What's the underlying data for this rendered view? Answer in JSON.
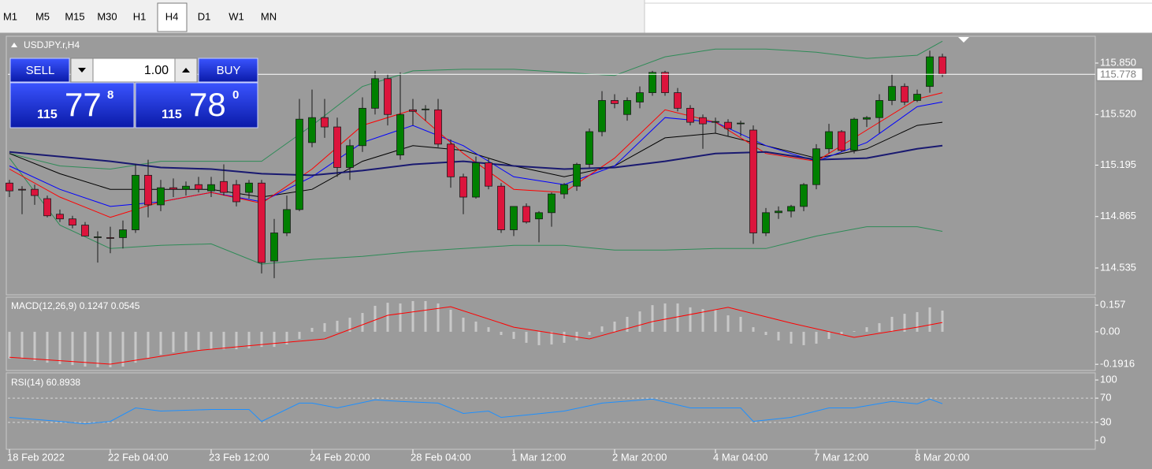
{
  "toolbar": {
    "timeframes": [
      "M1",
      "M5",
      "M15",
      "M30",
      "H1",
      "H4",
      "D1",
      "W1",
      "MN"
    ],
    "active": 5
  },
  "trade_panel": {
    "sell_label": "SELL",
    "buy_label": "BUY",
    "volume": "1.00",
    "sell_price": {
      "big": "115",
      "main": "77",
      "frac": "8"
    },
    "buy_price": {
      "big": "115",
      "main": "78",
      "frac": "0"
    }
  },
  "chart_data": [
    {
      "type": "candlestick",
      "title": "USDJPY.r,H4",
      "up_color": "#008000",
      "down_color": "#dc143c",
      "open": [
        115.08,
        115.04,
        115.04,
        114.98,
        114.88,
        114.85,
        114.81,
        114.73,
        114.73,
        114.73,
        114.78,
        115.13,
        114.94,
        115.05,
        115.04,
        115.07,
        115.03,
        115.09,
        115.07,
        115.02,
        115.08,
        114.58,
        114.76,
        114.91,
        115.34,
        115.5,
        115.44,
        115.18,
        115.32,
        115.56,
        115.75,
        115.26,
        115.55,
        115.55,
        115.55,
        115.33,
        115.12,
        114.99,
        115.21,
        115.06,
        114.78,
        114.93,
        114.85,
        114.89,
        115.01,
        115.06,
        115.2,
        115.41,
        115.61,
        115.52,
        115.6,
        115.66,
        115.79,
        115.66,
        115.56,
        115.5,
        115.47,
        115.47,
        115.46,
        115.42,
        114.76,
        114.89,
        114.9,
        114.93,
        115.07,
        115.3,
        115.41,
        115.29,
        115.49,
        115.5,
        115.61,
        115.7,
        115.61,
        115.7,
        115.89
      ],
      "high": [
        115.1,
        115.06,
        115.07,
        115.0,
        114.91,
        114.87,
        114.83,
        114.77,
        114.8,
        114.84,
        115.2,
        115.23,
        115.1,
        115.11,
        115.09,
        115.12,
        115.12,
        115.2,
        115.1,
        115.1,
        115.1,
        114.85,
        115.0,
        115.62,
        115.68,
        115.62,
        115.5,
        115.36,
        115.63,
        115.8,
        115.78,
        115.79,
        115.62,
        115.58,
        115.62,
        115.36,
        115.14,
        115.25,
        115.24,
        115.08,
        114.93,
        114.95,
        114.9,
        115.02,
        115.08,
        115.21,
        115.43,
        115.67,
        115.65,
        115.63,
        115.7,
        115.8,
        115.8,
        115.69,
        115.58,
        115.52,
        115.5,
        115.49,
        115.48,
        115.45,
        114.92,
        114.93,
        114.94,
        115.08,
        115.33,
        115.46,
        115.42,
        115.5,
        115.51,
        115.65,
        115.78,
        115.72,
        115.68,
        115.93,
        115.91
      ],
      "low": [
        114.99,
        114.88,
        114.94,
        114.86,
        114.83,
        114.79,
        114.74,
        114.57,
        114.63,
        114.66,
        114.76,
        114.86,
        114.9,
        114.99,
        115.0,
        115.02,
        114.99,
        115.0,
        114.93,
        114.98,
        114.5,
        114.47,
        114.74,
        114.9,
        115.31,
        115.37,
        115.12,
        115.1,
        115.28,
        115.52,
        115.45,
        115.23,
        115.45,
        115.48,
        115.31,
        115.05,
        114.88,
        114.98,
        115.04,
        114.76,
        114.74,
        114.82,
        114.7,
        114.8,
        114.98,
        115.03,
        115.18,
        115.38,
        115.56,
        115.48,
        115.56,
        115.64,
        115.64,
        115.54,
        115.45,
        115.3,
        115.4,
        115.38,
        115.38,
        114.69,
        114.74,
        114.85,
        114.86,
        114.9,
        115.04,
        115.27,
        115.28,
        115.27,
        115.44,
        115.4,
        115.58,
        115.58,
        115.6,
        115.66,
        115.76
      ],
      "close": [
        115.03,
        115.035,
        115.0,
        114.87,
        114.85,
        114.81,
        114.74,
        114.735,
        114.725,
        114.78,
        115.13,
        114.94,
        115.05,
        115.04,
        115.06,
        115.04,
        115.07,
        115.02,
        114.96,
        115.08,
        114.57,
        114.76,
        114.91,
        115.49,
        115.5,
        115.44,
        115.18,
        115.32,
        115.56,
        115.75,
        115.52,
        115.52,
        115.54,
        115.555,
        115.33,
        115.12,
        114.99,
        115.21,
        115.06,
        114.78,
        114.93,
        114.83,
        114.89,
        115.01,
        115.07,
        115.2,
        115.41,
        115.61,
        115.59,
        115.61,
        115.66,
        115.79,
        115.66,
        115.56,
        115.47,
        115.46,
        115.475,
        115.43,
        115.465,
        114.76,
        114.89,
        114.9,
        114.93,
        115.07,
        115.3,
        115.41,
        115.29,
        115.49,
        115.5,
        115.61,
        115.7,
        115.6,
        115.65,
        115.89,
        115.78
      ],
      "lines": [
        {
          "color": "#2e8b57",
          "width": 1,
          "x": [
            0,
            4,
            8,
            12,
            16,
            20,
            24,
            28,
            32,
            36,
            40,
            44,
            48,
            52,
            56,
            60,
            64,
            68,
            72,
            74
          ],
          "values": [
            115.27,
            115.19,
            115.17,
            115.22,
            115.22,
            115.22,
            115.45,
            115.7,
            115.8,
            115.81,
            115.81,
            115.79,
            115.77,
            115.89,
            115.94,
            115.94,
            115.92,
            115.88,
            115.9,
            115.99
          ]
        },
        {
          "color": "#2e8b57",
          "width": 1,
          "x": [
            0,
            4,
            8,
            12,
            16,
            20,
            24,
            28,
            32,
            36,
            40,
            44,
            48,
            52,
            56,
            60,
            64,
            68,
            72,
            74
          ],
          "values": [
            115.24,
            114.81,
            114.66,
            114.68,
            114.69,
            114.56,
            114.59,
            114.61,
            114.64,
            114.66,
            114.68,
            114.68,
            114.65,
            114.65,
            114.66,
            114.66,
            114.74,
            114.8,
            114.8,
            114.77
          ]
        },
        {
          "color": "#000000",
          "width": 1,
          "x": [
            0,
            4,
            8,
            12,
            16,
            20,
            24,
            28,
            32,
            36,
            40,
            44,
            48,
            52,
            56,
            60,
            64,
            68,
            72,
            74
          ],
          "values": [
            115.27,
            115.14,
            115.04,
            115.04,
            115.04,
            114.99,
            115.04,
            115.22,
            115.32,
            115.29,
            115.19,
            115.12,
            115.19,
            115.37,
            115.4,
            115.32,
            115.24,
            115.3,
            115.45,
            115.47
          ]
        },
        {
          "color": "#0000ff",
          "width": 1,
          "x": [
            0,
            4,
            8,
            12,
            16,
            20,
            24,
            28,
            32,
            36,
            40,
            44,
            48,
            52,
            56,
            60,
            64,
            68,
            72,
            74
          ],
          "values": [
            115.19,
            115.04,
            114.93,
            114.96,
            115.02,
            114.96,
            115.12,
            115.34,
            115.45,
            115.32,
            115.12,
            115.07,
            115.19,
            115.5,
            115.47,
            115.32,
            115.22,
            115.34,
            115.57,
            115.6
          ]
        },
        {
          "color": "#ff0000",
          "width": 1,
          "x": [
            0,
            4,
            8,
            12,
            16,
            20,
            24,
            28,
            32,
            36,
            40,
            44,
            48,
            52,
            56,
            60,
            64,
            68,
            72,
            74
          ],
          "values": [
            115.17,
            114.99,
            114.86,
            114.96,
            115.02,
            114.95,
            115.17,
            115.45,
            115.55,
            115.27,
            115.04,
            115.02,
            115.24,
            115.55,
            115.47,
            115.27,
            115.22,
            115.42,
            115.62,
            115.66
          ]
        },
        {
          "color": "#191970",
          "width": 2,
          "x": [
            0,
            4,
            8,
            12,
            16,
            20,
            24,
            28,
            32,
            36,
            40,
            44,
            48,
            52,
            56,
            60,
            64,
            68,
            72,
            74
          ],
          "values": [
            115.28,
            115.25,
            115.22,
            115.18,
            115.17,
            115.14,
            115.13,
            115.16,
            115.2,
            115.22,
            115.19,
            115.17,
            115.18,
            115.22,
            115.27,
            115.28,
            115.23,
            115.24,
            115.3,
            115.32
          ]
        }
      ],
      "current_price": 115.778,
      "xlim": [
        -0.125,
        86.125
      ],
      "ylim": [
        114.363,
        116.017
      ],
      "yticks": [
        {
          "value": 115.85,
          "label": "115.850"
        },
        {
          "value": 115.52,
          "label": "115.520"
        },
        115.195,
        114.865,
        114.535
      ],
      "xticks": [
        {
          "value": 0,
          "label": "18 Feb 2022"
        },
        {
          "value": 8,
          "label": "22 Feb 04:00"
        },
        {
          "value": 16,
          "label": "23 Feb 12:00"
        },
        {
          "value": 24,
          "label": "24 Feb 20:00"
        },
        {
          "value": 32,
          "label": "28 Feb 04:00"
        },
        {
          "value": 40,
          "label": "1 Mar 12:00"
        },
        {
          "value": 48,
          "label": "2 Mar 20:00"
        },
        {
          "value": 56,
          "label": "4 Mar 04:00"
        },
        {
          "value": 64,
          "label": "7 Mar 12:00"
        },
        {
          "value": 72,
          "label": "8 Mar 20:00"
        }
      ]
    },
    {
      "type": "macd",
      "title": "MACD(12,26,9) 0.1247 0.0545",
      "color": "#c8c8c8",
      "values": [
        -0.158,
        -0.158,
        -0.172,
        -0.182,
        -0.191,
        -0.196,
        -0.205,
        -0.209,
        -0.209,
        -0.205,
        -0.182,
        -0.158,
        -0.135,
        -0.121,
        -0.112,
        -0.107,
        -0.103,
        -0.103,
        -0.103,
        -0.098,
        -0.089,
        -0.089,
        -0.075,
        -0.042,
        0.023,
        0.051,
        0.065,
        0.083,
        0.111,
        0.153,
        0.171,
        0.167,
        0.181,
        0.181,
        0.167,
        0.13,
        0.083,
        0.06,
        0.027,
        -0.019,
        -0.042,
        -0.065,
        -0.079,
        -0.075,
        -0.065,
        -0.051,
        -0.019,
        0.032,
        0.06,
        0.088,
        0.12,
        0.157,
        0.167,
        0.167,
        0.144,
        0.134,
        0.13,
        0.097,
        0.088,
        0.027,
        -0.019,
        -0.051,
        -0.07,
        -0.079,
        -0.07,
        -0.042,
        -0.019,
        0.004,
        0.027,
        0.051,
        0.088,
        0.106,
        0.116,
        0.144,
        0.125
      ],
      "signal": {
        "color": "#ff0000",
        "x": [
          0,
          8,
          15,
          20,
          25,
          30,
          35,
          40,
          46,
          51,
          57,
          62,
          67,
          72,
          74
        ],
        "values": [
          -0.15,
          -0.191,
          -0.11,
          -0.075,
          -0.042,
          0.097,
          0.148,
          0.027,
          -0.042,
          0.06,
          0.144,
          0.051,
          -0.033,
          0.027,
          0.055
        ]
      },
      "xlim": [
        -0.125,
        86.125
      ],
      "ylim": [
        -0.228,
        0.204
      ],
      "yticks": [
        0.157,
        {
          "value": 0,
          "label": "0.00"
        },
        -0.1916
      ]
    },
    {
      "type": "rsi",
      "title": "RSI(14) 60.8938",
      "color": "#1e90ff",
      "x": [
        0,
        4,
        6,
        8,
        10,
        12,
        16,
        19,
        20,
        23,
        24,
        26,
        29,
        31,
        34,
        36,
        38,
        39,
        41,
        44,
        47,
        51,
        54,
        58,
        59,
        62,
        65,
        67,
        70,
        72,
        73,
        74
      ],
      "values": [
        38.2,
        31.6,
        27.6,
        31.6,
        53.9,
        48.7,
        51.3,
        51.3,
        31.6,
        61.8,
        61.8,
        53.9,
        67.1,
        64.5,
        61.8,
        44.7,
        48.7,
        38.2,
        42.1,
        48.7,
        61.8,
        68.4,
        53.9,
        53.9,
        31.6,
        38.2,
        53.9,
        53.9,
        64.5,
        60.5,
        68.4,
        60.9
      ],
      "levels": [
        70,
        30
      ],
      "xlim": [
        -0.125,
        86.125
      ],
      "ylim": [
        -14.5,
        111.8
      ],
      "yticks": [
        100,
        70,
        30,
        0
      ]
    }
  ]
}
